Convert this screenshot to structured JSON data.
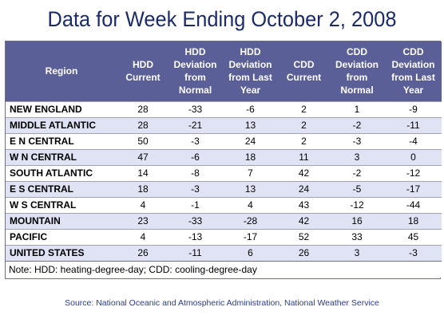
{
  "title": "Data for Week Ending October 2, 2008",
  "table": {
    "headers": [
      [
        "Region"
      ],
      [
        "HDD",
        "Current"
      ],
      [
        "HDD",
        "Deviation",
        "from",
        "Normal"
      ],
      [
        "HDD",
        "Deviation",
        "from Last",
        "Year"
      ],
      [
        "CDD",
        "Current"
      ],
      [
        "CDD",
        "Deviation",
        "from",
        "Normal"
      ],
      [
        "CDD",
        "Deviation",
        "from Last",
        "Year"
      ]
    ],
    "rows": [
      [
        "NEW ENGLAND",
        "28",
        "-33",
        "-6",
        "2",
        "1",
        "-9"
      ],
      [
        "MIDDLE ATLANTIC",
        "28",
        "-21",
        "13",
        "2",
        "-2",
        "-11"
      ],
      [
        "E N CENTRAL",
        "50",
        "-3",
        "24",
        "2",
        "-3",
        "-4"
      ],
      [
        "W N CENTRAL",
        "47",
        "-6",
        "18",
        "11",
        "3",
        "0"
      ],
      [
        "SOUTH ATLANTIC",
        "14",
        "-8",
        "7",
        "42",
        "-2",
        "-12"
      ],
      [
        "E S CENTRAL",
        "18",
        "-3",
        "13",
        "24",
        "-5",
        "-17"
      ],
      [
        "W S CENTRAL",
        "4",
        "-1",
        "4",
        "43",
        "-12",
        "-44"
      ],
      [
        "MOUNTAIN",
        "23",
        "-33",
        "-28",
        "42",
        "16",
        "18"
      ],
      [
        "PACIFIC",
        "4",
        "-13",
        "-17",
        "52",
        "33",
        "45"
      ],
      [
        "UNITED STATES",
        "26",
        "-11",
        "6",
        "26",
        "3",
        "-3"
      ]
    ],
    "note": "Note: HDD: heating-degree-day; CDD: cooling-degree-day"
  },
  "source": "Source:  National Oceanic and Atmospheric Administration, National Weather Service",
  "colors": {
    "title": "#1b2a6b",
    "header_bg": "#5b5f97",
    "header_text": "#ffffff",
    "alt_row_bg": "#dfe3f4",
    "source_text": "#2a3c8c"
  }
}
